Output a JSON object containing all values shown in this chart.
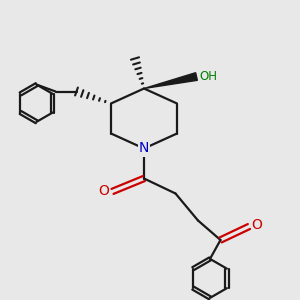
{
  "background_color": "#e8e8e8",
  "bond_color": "#1a1a1a",
  "N_color": "#0000cc",
  "O_color": "#cc0000",
  "OH_color": "#008000",
  "figsize": [
    3.0,
    3.0
  ],
  "dpi": 100,
  "xlim": [
    0,
    10
  ],
  "ylim": [
    0,
    10
  ]
}
